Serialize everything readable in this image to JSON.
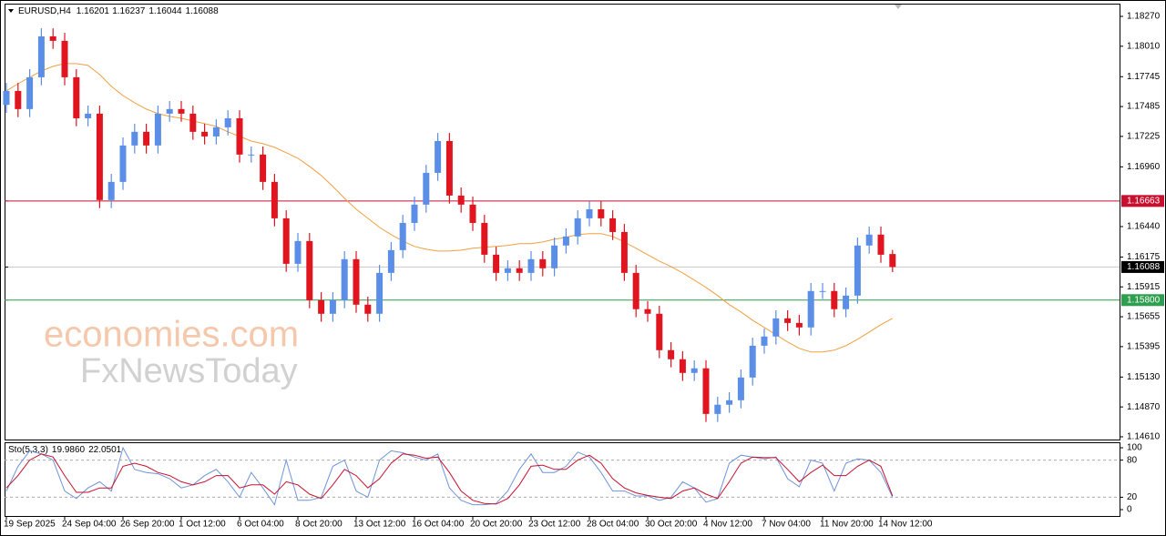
{
  "chart_data": {
    "type": "candlestick",
    "symbol": "EURUSD,H4",
    "categories": [
      "19 Sep 2025",
      null,
      null,
      null,
      null,
      "24 Sep 04:00",
      null,
      null,
      null,
      null,
      "26 Sep 20:00",
      null,
      null,
      null,
      null,
      "1 Oct 12:00",
      null,
      null,
      null,
      null,
      "6 Oct 04:00",
      null,
      null,
      null,
      null,
      "8 Oct 20:00",
      null,
      null,
      null,
      null,
      "13 Oct 12:00",
      null,
      null,
      null,
      null,
      "16 Oct 04:00",
      null,
      null,
      null,
      null,
      "20 Oct 20:00",
      null,
      null,
      null,
      null,
      "23 Oct 12:00",
      null,
      null,
      null,
      null,
      "28 Oct 04:00",
      null,
      null,
      null,
      null,
      "30 Oct 20:00",
      null,
      null,
      null,
      null,
      "4 Nov 12:00",
      null,
      null,
      null,
      null,
      "7 Nov 04:00",
      null,
      null,
      null,
      null,
      "11 Nov 20:00",
      null,
      null,
      null,
      null,
      "14 Nov 12:00",
      null
    ],
    "open": [
      1.175,
      1.17621,
      1.17463,
      1.1774,
      1.18096,
      1.18057,
      1.1774,
      1.17383,
      1.17423,
      1.16671,
      1.16829,
      1.17146,
      1.17265,
      1.17146,
      1.17423,
      1.17463,
      1.17423,
      1.17265,
      1.17225,
      1.17304,
      1.17383,
      1.17067,
      1.17067,
      1.16829,
      1.16512,
      1.16116,
      1.16314,
      1.15799,
      1.15681,
      1.15799,
      1.16156,
      1.1576,
      1.15681,
      1.16037,
      1.16235,
      1.16472,
      1.16631,
      1.16908,
      1.17185,
      1.1671,
      1.16631,
      1.16472,
      1.16195,
      1.16037,
      1.16077,
      1.16037,
      1.16156,
      1.16077,
      1.16275,
      1.16354,
      1.16512,
      1.16591,
      1.16512,
      1.16393,
      1.16037,
      1.15721,
      1.15681,
      1.15364,
      1.15285,
      1.15166,
      1.15206,
      1.14809,
      1.14889,
      1.14928,
      1.15126,
      1.15403,
      1.15483,
      1.15641,
      1.15601,
      1.15562,
      1.15879,
      1.15879,
      1.15721,
      1.15839,
      1.16275,
      1.1637,
      1.16201
    ],
    "high": [
      1.17691,
      1.17691,
      1.1781,
      1.18166,
      1.18166,
      1.18127,
      1.1781,
      1.17493,
      1.17493,
      1.16899,
      1.17216,
      1.17335,
      1.17335,
      1.17493,
      1.17533,
      1.17533,
      1.17493,
      1.17335,
      1.17374,
      1.17453,
      1.17453,
      1.17137,
      1.17137,
      1.16899,
      1.16582,
      1.16384,
      1.16384,
      1.15869,
      1.15869,
      1.16226,
      1.16226,
      1.1583,
      1.16107,
      1.16305,
      1.16542,
      1.16701,
      1.16978,
      1.17255,
      1.17255,
      1.1678,
      1.16701,
      1.16542,
      1.16265,
      1.16147,
      1.16147,
      1.16226,
      1.16226,
      1.16345,
      1.16424,
      1.16582,
      1.16661,
      1.16661,
      1.16582,
      1.16463,
      1.16107,
      1.15791,
      1.15751,
      1.15434,
      1.15355,
      1.15276,
      1.15276,
      1.14959,
      1.14998,
      1.15196,
      1.15473,
      1.15553,
      1.15711,
      1.15711,
      1.15671,
      1.15949,
      1.15949,
      1.15949,
      1.15909,
      1.16345,
      1.1644,
      1.1644,
      1.16237
    ],
    "low": [
      1.1743,
      1.17393,
      1.17393,
      1.1767,
      1.17987,
      1.1767,
      1.17313,
      1.17313,
      1.16601,
      1.16601,
      1.16759,
      1.17076,
      1.17076,
      1.17076,
      1.17353,
      1.17353,
      1.17195,
      1.17155,
      1.17155,
      1.17234,
      1.16997,
      1.16997,
      1.16759,
      1.16442,
      1.16046,
      1.16046,
      1.15729,
      1.15611,
      1.15611,
      1.15729,
      1.1569,
      1.15611,
      1.15611,
      1.15967,
      1.16165,
      1.16402,
      1.16561,
      1.16838,
      1.1664,
      1.16561,
      1.16402,
      1.16125,
      1.15967,
      1.15967,
      1.15967,
      1.15967,
      1.16007,
      1.16007,
      1.16205,
      1.16284,
      1.16442,
      1.16442,
      1.16323,
      1.15967,
      1.15651,
      1.15611,
      1.15294,
      1.15215,
      1.15096,
      1.15096,
      1.14739,
      1.14739,
      1.14819,
      1.14858,
      1.15056,
      1.15333,
      1.15413,
      1.15531,
      1.15492,
      1.15492,
      1.15809,
      1.15651,
      1.15651,
      1.15769,
      1.16205,
      1.16125,
      1.16044
    ],
    "close": [
      1.17621,
      1.17463,
      1.1774,
      1.18096,
      1.18057,
      1.1774,
      1.17383,
      1.17423,
      1.16671,
      1.16829,
      1.17146,
      1.17265,
      1.17146,
      1.17423,
      1.17463,
      1.17423,
      1.17265,
      1.17225,
      1.17304,
      1.17383,
      1.17067,
      1.17067,
      1.16829,
      1.16512,
      1.16116,
      1.16314,
      1.15799,
      1.15681,
      1.15799,
      1.16156,
      1.1576,
      1.15681,
      1.16037,
      1.16235,
      1.16472,
      1.16631,
      1.16908,
      1.17185,
      1.1671,
      1.16631,
      1.16472,
      1.16195,
      1.16037,
      1.16077,
      1.16037,
      1.16156,
      1.16077,
      1.16275,
      1.16354,
      1.16512,
      1.16591,
      1.16512,
      1.16393,
      1.16037,
      1.15721,
      1.15681,
      1.15364,
      1.15285,
      1.15166,
      1.15206,
      1.14809,
      1.14889,
      1.14928,
      1.15126,
      1.15403,
      1.15483,
      1.15641,
      1.15601,
      1.15562,
      1.15879,
      1.15879,
      1.15721,
      1.15839,
      1.16275,
      1.1637,
      1.16195,
      1.16088
    ],
    "up_color": "#5b8ee6",
    "down_color": "#e0151f",
    "series": [
      {
        "color": "#f0a040",
        "values": [
          1.17621,
          1.17684,
          1.1774,
          1.17795,
          1.17835,
          1.17859,
          1.17859,
          1.17843,
          1.17764,
          1.17661,
          1.17581,
          1.17518,
          1.17463,
          1.17423,
          1.17399,
          1.17383,
          1.1736,
          1.17336,
          1.17312,
          1.17265,
          1.17225,
          1.17185,
          1.17162,
          1.1713,
          1.17083,
          1.17035,
          1.16964,
          1.16885,
          1.16789,
          1.16686,
          1.16591,
          1.16512,
          1.16433,
          1.1637,
          1.16314,
          1.16267,
          1.16243,
          1.16227,
          1.16227,
          1.16235,
          1.16251,
          1.16259,
          1.16267,
          1.16275,
          1.16291,
          1.16291,
          1.16306,
          1.1633,
          1.16346,
          1.1637,
          1.16378,
          1.16378,
          1.16354,
          1.16306,
          1.16251,
          1.16195,
          1.1614,
          1.16092,
          1.16037,
          1.15974,
          1.15911,
          1.15839,
          1.1576,
          1.15697,
          1.15625,
          1.15562,
          1.15499,
          1.15435,
          1.1538,
          1.15348,
          1.15348,
          1.15364,
          1.15403,
          1.15459,
          1.15522,
          1.15586,
          1.15641
        ]
      }
    ],
    "ylim": [
      1.14586,
      1.18373
    ],
    "yticks": [
      {
        "value": 1.1827,
        "label": "1.18270"
      },
      {
        "value": 1.1801,
        "label": "1.18010"
      },
      {
        "value": 1.17745,
        "label": "1.17745"
      },
      {
        "value": 1.17485,
        "label": "1.17485"
      },
      {
        "value": 1.17225,
        "label": "1.17225"
      },
      {
        "value": 1.1696,
        "label": "1.16960"
      },
      {
        "value": 1.1644,
        "label": "1.16440"
      },
      {
        "value": 1.16175,
        "label": "1.16175"
      },
      {
        "value": 1.15915,
        "label": "1.15915"
      },
      {
        "value": 1.15655,
        "label": "1.15655"
      },
      {
        "value": 1.15395,
        "label": "1.15395"
      },
      {
        "value": 1.1513,
        "label": "1.15130"
      },
      {
        "value": 1.1487,
        "label": "1.14870"
      },
      {
        "value": 1.1461,
        "label": "1.14610"
      }
    ],
    "hlines": [
      {
        "value": 1.16663,
        "label": "1.16663",
        "color": "#c8102e"
      },
      {
        "value": 1.16088,
        "label": "1.16088",
        "color": "#000000"
      },
      {
        "value": 1.158,
        "label": "1.15800",
        "color": "#2e9e4f"
      }
    ],
    "watermark": [
      "economies.com",
      "FxNewsToday"
    ],
    "indicator": {
      "type": "line",
      "name": "Sto(5,3,3)",
      "series": [
        {
          "color": "#6f94d8",
          "value_label": "19.9860",
          "values": [
            30,
            70,
            95,
            90,
            80,
            30,
            18,
            35,
            45,
            30,
            100,
            65,
            60,
            58,
            50,
            35,
            40,
            55,
            65,
            45,
            20,
            60,
            35,
            8,
            80,
            15,
            15,
            20,
            70,
            80,
            30,
            20,
            80,
            95,
            92,
            85,
            80,
            90,
            35,
            15,
            8,
            8,
            10,
            30,
            65,
            90,
            60,
            60,
            70,
            93,
            85,
            60,
            30,
            30,
            22,
            22,
            15,
            20,
            45,
            35,
            12,
            18,
            75,
            88,
            85,
            82,
            85,
            50,
            37,
            80,
            75,
            30,
            75,
            82,
            80,
            60,
            19.986
          ]
        },
        {
          "color": "#c8102e",
          "value_label": "22.0501",
          "values": [
            35,
            55,
            80,
            90,
            85,
            55,
            28,
            28,
            35,
            35,
            70,
            75,
            70,
            60,
            55,
            45,
            40,
            45,
            55,
            55,
            35,
            40,
            40,
            25,
            45,
            40,
            25,
            18,
            40,
            65,
            55,
            35,
            50,
            75,
            90,
            88,
            83,
            85,
            60,
            30,
            15,
            10,
            9,
            18,
            40,
            70,
            72,
            65,
            65,
            80,
            88,
            75,
            50,
            35,
            27,
            23,
            20,
            18,
            30,
            35,
            25,
            18,
            45,
            75,
            85,
            84,
            84,
            65,
            45,
            60,
            72,
            55,
            55,
            70,
            80,
            70,
            22.0501
          ]
        }
      ],
      "ylim": [
        -10.3,
        107.4
      ],
      "yticks": [
        100,
        80,
        20,
        0
      ],
      "levels": [
        80,
        20
      ]
    }
  }
}
